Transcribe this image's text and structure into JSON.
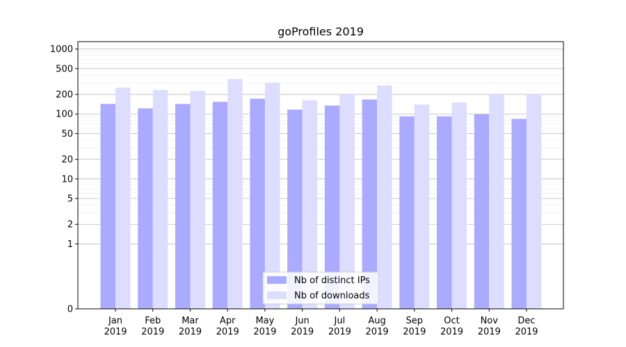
{
  "chart_data": {
    "type": "bar",
    "title": "goProfiles 2019",
    "xlabel": "",
    "ylabel": "",
    "yscale": "symlog",
    "ylim": [
      0,
      1300
    ],
    "grid": true,
    "legend_position": "bottom-center",
    "categories": [
      [
        "Jan",
        "2019"
      ],
      [
        "Feb",
        "2019"
      ],
      [
        "Mar",
        "2019"
      ],
      [
        "Apr",
        "2019"
      ],
      [
        "May",
        "2019"
      ],
      [
        "Jun",
        "2019"
      ],
      [
        "Jul",
        "2019"
      ],
      [
        "Aug",
        "2019"
      ],
      [
        "Sep",
        "2019"
      ],
      [
        "Oct",
        "2019"
      ],
      [
        "Nov",
        "2019"
      ],
      [
        "Dec",
        "2019"
      ]
    ],
    "yticks": [
      0,
      1,
      2,
      5,
      10,
      20,
      50,
      100,
      200,
      500,
      1000
    ],
    "ytick_labels": [
      "0",
      "1",
      "2",
      "5",
      "10",
      "20",
      "50",
      "100",
      "200",
      "500",
      "1000"
    ],
    "series": [
      {
        "name": "Nb of distinct IPs",
        "color": "#aaaaff",
        "values": [
          143,
          122,
          143,
          154,
          172,
          117,
          135,
          167,
          92,
          92,
          99,
          84
        ]
      },
      {
        "name": "Nb of downloads",
        "color": "#ddddff",
        "values": [
          255,
          235,
          227,
          345,
          305,
          162,
          205,
          275,
          140,
          150,
          200,
          200
        ]
      }
    ]
  }
}
